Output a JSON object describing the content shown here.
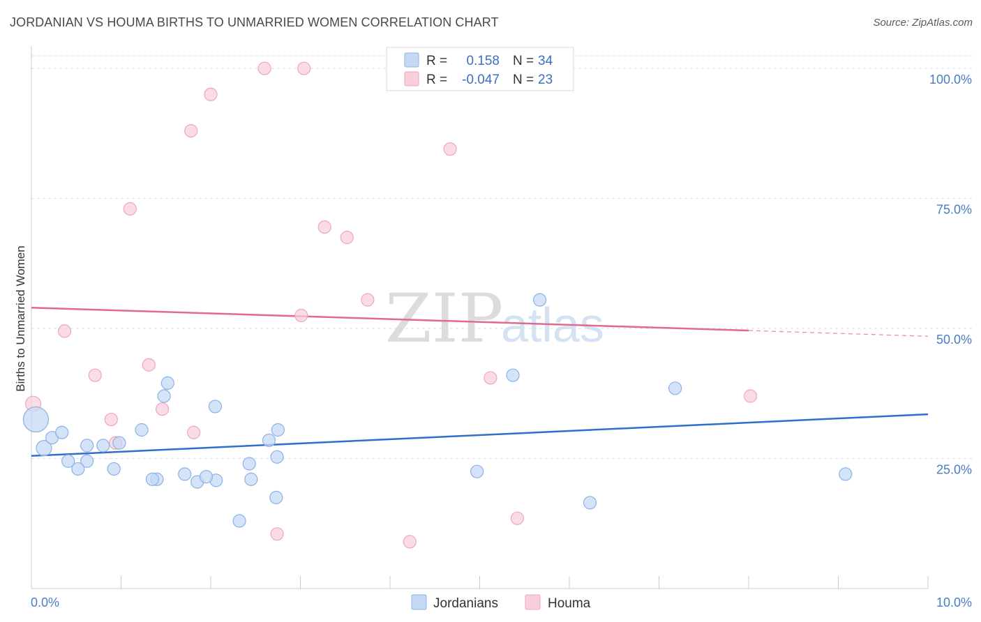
{
  "header": {
    "title": "JORDANIAN VS HOUMA BIRTHS TO UNMARRIED WOMEN CORRELATION CHART",
    "source": "Source: ZipAtlas.com"
  },
  "watermark": {
    "zip": "ZIP",
    "atlas": "atlas"
  },
  "legend": {
    "rows": [
      {
        "r_label": "R =",
        "r_value": "0.158",
        "n_label": "N =",
        "n_value": "34"
      },
      {
        "r_label": "R =",
        "r_value": "-0.047",
        "n_label": "N =",
        "n_value": "23"
      }
    ]
  },
  "colors": {
    "jordanians_fill": "#c5d9f5",
    "jordanians_stroke": "#8ab2e6",
    "jordanians_line": "#2f6fca",
    "houma_fill": "#f9cfdc",
    "houma_stroke": "#efa6bd",
    "houma_line": "#e06b90"
  },
  "chart_data": {
    "type": "scatter",
    "title": "JORDANIAN VS HOUMA BIRTHS TO UNMARRIED WOMEN CORRELATION CHART",
    "xlabel": "",
    "ylabel": "Births to Unmarried Women",
    "xlim": [
      0,
      10
    ],
    "ylim": [
      0,
      103.5
    ],
    "x_tick_labels": [
      "0.0%",
      "10.0%"
    ],
    "y_ticks": [
      25,
      50,
      75,
      100
    ],
    "y_tick_labels": [
      "25.0%",
      "50.0%",
      "75.0%",
      "100.0%"
    ],
    "grid": true,
    "series": [
      {
        "name": "Jordanians",
        "r": 0.158,
        "n": 34,
        "points": [
          [
            0.05,
            32.5
          ],
          [
            0.14,
            27.0
          ],
          [
            0.23,
            29.0
          ],
          [
            0.34,
            30.0
          ],
          [
            0.62,
            27.5
          ],
          [
            0.8,
            27.5
          ],
          [
            0.98,
            28.0
          ],
          [
            1.23,
            30.5
          ],
          [
            1.48,
            37.0
          ],
          [
            1.52,
            39.5
          ],
          [
            2.05,
            35.0
          ],
          [
            2.65,
            28.5
          ],
          [
            2.75,
            30.5
          ],
          [
            2.74,
            25.3
          ],
          [
            0.41,
            24.5
          ],
          [
            0.62,
            24.5
          ],
          [
            0.52,
            23.0
          ],
          [
            0.92,
            23.0
          ],
          [
            1.4,
            21.0
          ],
          [
            1.35,
            21.0
          ],
          [
            1.71,
            22.0
          ],
          [
            1.85,
            20.5
          ],
          [
            2.06,
            20.8
          ],
          [
            2.43,
            24.0
          ],
          [
            2.73,
            17.5
          ],
          [
            2.45,
            21.0
          ],
          [
            1.95,
            21.5
          ],
          [
            2.32,
            13.0
          ],
          [
            5.37,
            41.0
          ],
          [
            7.18,
            38.5
          ],
          [
            5.67,
            55.5
          ],
          [
            4.97,
            22.5
          ],
          [
            6.23,
            16.5
          ],
          [
            9.08,
            22.0
          ]
        ]
      },
      {
        "name": "Houma",
        "r": -0.047,
        "n": 23,
        "points": [
          [
            0.02,
            35.5
          ],
          [
            0.37,
            49.5
          ],
          [
            0.71,
            41.0
          ],
          [
            0.89,
            32.5
          ],
          [
            0.94,
            28.0
          ],
          [
            1.1,
            73.0
          ],
          [
            1.31,
            43.0
          ],
          [
            1.46,
            34.5
          ],
          [
            1.78,
            88.0
          ],
          [
            1.81,
            30.0
          ],
          [
            2.0,
            95.0
          ],
          [
            2.6,
            100.0
          ],
          [
            2.74,
            10.5
          ],
          [
            3.04,
            100.0
          ],
          [
            3.01,
            52.5
          ],
          [
            3.27,
            69.5
          ],
          [
            3.52,
            67.5
          ],
          [
            3.75,
            55.5
          ],
          [
            4.22,
            9.0
          ],
          [
            4.67,
            84.5
          ],
          [
            5.12,
            40.5
          ],
          [
            5.42,
            13.5
          ],
          [
            8.02,
            37.0
          ]
        ]
      }
    ],
    "trend_lines": [
      {
        "series": "Jordanians",
        "x_start": 0,
        "y_start": 25.5,
        "x_end": 10,
        "y_end": 33.5,
        "dashed_from": null
      },
      {
        "series": "Houma",
        "x_start": 0,
        "y_start": 54.0,
        "x_end": 10,
        "y_end": 48.5,
        "dashed_from": 8.0
      }
    ],
    "legend_entries": [
      "Jordanians",
      "Houma"
    ],
    "legend_position": "bottom-center"
  }
}
